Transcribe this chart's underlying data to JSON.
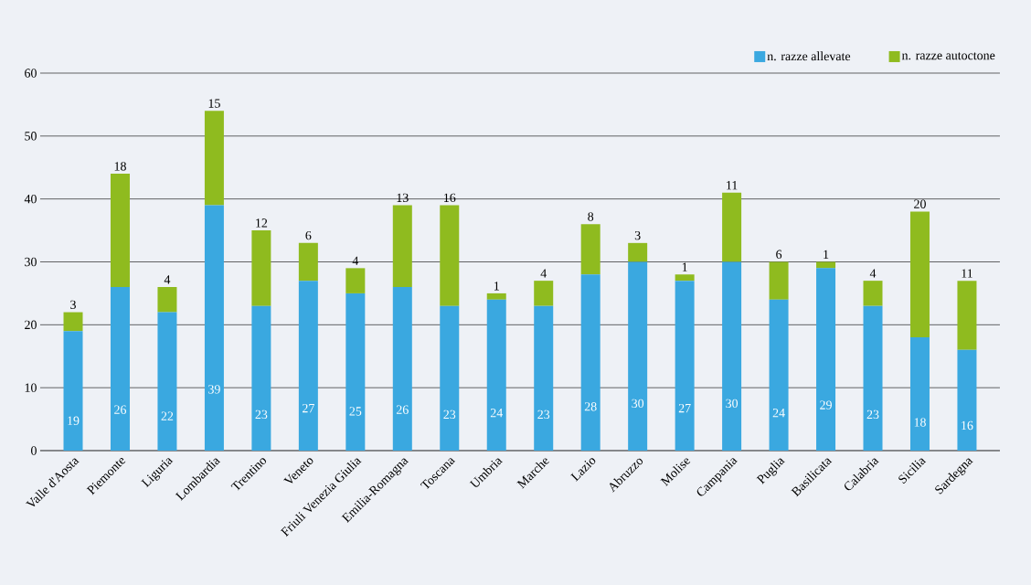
{
  "chart_data": {
    "type": "bar",
    "stacked": true,
    "data_labels": true,
    "grid": "y",
    "legend": "top right",
    "categories": [
      "Valle d'Aosta",
      "Piemonte",
      "Liguria",
      "Lombardia",
      "Trentino",
      "Veneto",
      "Friuli Venezia Giulia",
      "Emilia-Romagna",
      "Toscana",
      "Umbria",
      "Marche",
      "Lazio",
      "Abruzzo",
      "Molise",
      "Campania",
      "Puglia",
      "Basilicata",
      "Calabria",
      "Sicilia",
      "Sardegna"
    ],
    "series": [
      {
        "name": "n. razze allevate",
        "color": "#3aa8e0",
        "values": [
          19,
          26,
          22,
          39,
          23,
          27,
          25,
          26,
          23,
          24,
          23,
          28,
          30,
          27,
          30,
          24,
          29,
          23,
          18,
          16
        ]
      },
      {
        "name": "n. razze autoctone",
        "color": "#8fbb1f",
        "values": [
          3,
          18,
          4,
          15,
          12,
          6,
          4,
          13,
          16,
          1,
          4,
          8,
          3,
          1,
          11,
          6,
          1,
          4,
          20,
          11
        ]
      }
    ],
    "ylim": [
      0,
      60
    ],
    "yticks": [
      0,
      10,
      20,
      30,
      40,
      50,
      60
    ]
  }
}
